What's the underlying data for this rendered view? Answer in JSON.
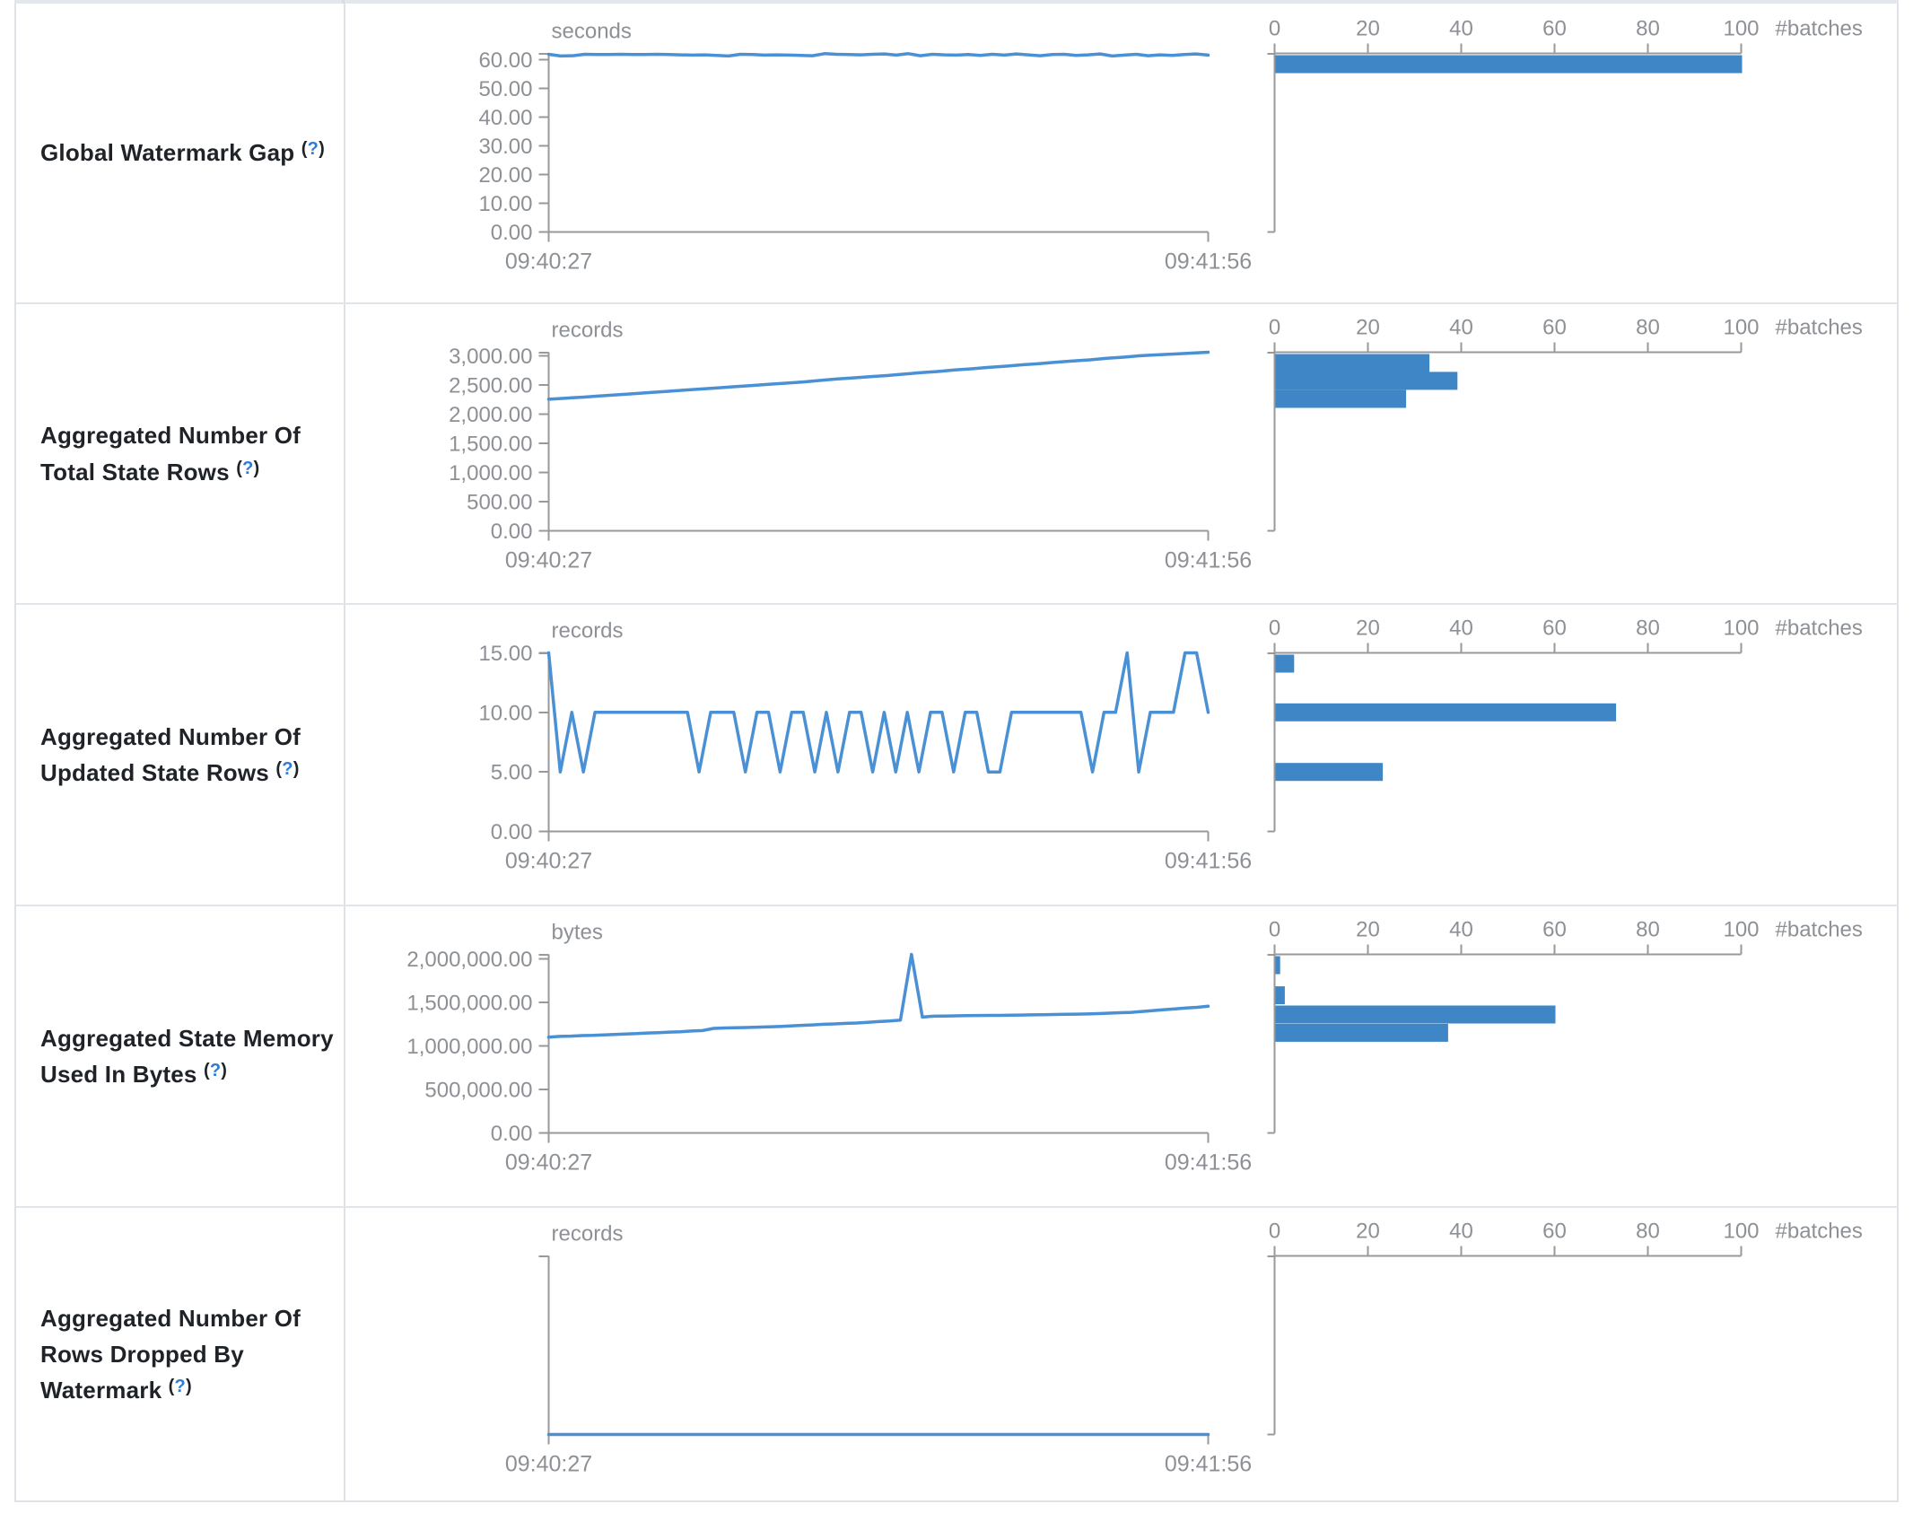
{
  "help": {
    "open": "(",
    "mark": "?",
    "close": ")"
  },
  "time_axis": {
    "start": "09:40:27",
    "end": "09:41:56"
  },
  "histogram_axis": {
    "label": "#batches",
    "max": 100,
    "ticks": [
      {
        "v": 0,
        "label": "0"
      },
      {
        "v": 20,
        "label": "20"
      },
      {
        "v": 40,
        "label": "40"
      },
      {
        "v": 60,
        "label": "60"
      },
      {
        "v": 80,
        "label": "80"
      },
      {
        "v": 100,
        "label": "100"
      }
    ]
  },
  "colors": {
    "line_blue": "#4a90d5",
    "bar_blue": "#3e86c6",
    "axis_gray": "#999999",
    "chart_text_gray": "#8d9095",
    "label_dark": "#1f2328",
    "help_blue": "#2e7bd6",
    "border_gray": "#dee2e6"
  },
  "chart_data": [
    {
      "type": "line+histogram",
      "label": "Global Watermark Gap",
      "unit": "seconds",
      "y_max": 62.2,
      "y_ticks": [
        {
          "v": 0,
          "label": "0.00"
        },
        {
          "v": 10,
          "label": "10.00"
        },
        {
          "v": 20,
          "label": "20.00"
        },
        {
          "v": 30,
          "label": "30.00"
        },
        {
          "v": 40,
          "label": "40.00"
        },
        {
          "v": 50,
          "label": "50.00"
        },
        {
          "v": 60,
          "label": "60.00"
        }
      ],
      "values": [
        61.9,
        61.3,
        61.4,
        61.9,
        61.8,
        61.8,
        61.9,
        61.8,
        61.8,
        61.9,
        61.8,
        61.7,
        61.6,
        61.7,
        61.5,
        61.3,
        61.9,
        61.8,
        61.6,
        61.7,
        61.6,
        61.5,
        61.4,
        62.1,
        61.9,
        61.8,
        61.7,
        61.9,
        62.0,
        61.6,
        62.1,
        61.4,
        61.9,
        61.7,
        61.6,
        61.8,
        61.5,
        61.9,
        61.6,
        62.0,
        61.7,
        61.4,
        61.8,
        61.9,
        61.5,
        61.7,
        62.0,
        61.3,
        61.6,
        61.9,
        61.4,
        61.7,
        61.5,
        61.8,
        62.0,
        61.6
      ],
      "histogram_bins": [
        {
          "value": 60.5,
          "batches": 100
        }
      ]
    },
    {
      "type": "line+histogram",
      "label": "Aggregated Number Of Total State Rows",
      "unit": "records",
      "y_max": 3060,
      "y_ticks": [
        {
          "v": 0,
          "label": "0.00"
        },
        {
          "v": 500,
          "label": "500.00"
        },
        {
          "v": 1000,
          "label": "1,000.00"
        },
        {
          "v": 1500,
          "label": "1,500.00"
        },
        {
          "v": 2000,
          "label": "2,000.00"
        },
        {
          "v": 2500,
          "label": "2,500.00"
        },
        {
          "v": 3000,
          "label": "3,000.00"
        }
      ],
      "values": [
        2255,
        2272,
        2290,
        2310,
        2330,
        2350,
        2370,
        2390,
        2410,
        2430,
        2450,
        2470,
        2490,
        2510,
        2530,
        2550,
        2575,
        2600,
        2620,
        2640,
        2660,
        2685,
        2710,
        2730,
        2755,
        2775,
        2800,
        2820,
        2845,
        2865,
        2890,
        2910,
        2930,
        2955,
        2975,
        3000,
        3015,
        3030,
        3045,
        3060
      ],
      "histogram_bins": [
        {
          "value": 2880,
          "batches": 33
        },
        {
          "value": 2570,
          "batches": 39
        },
        {
          "value": 2260,
          "batches": 28
        }
      ]
    },
    {
      "type": "line+histogram",
      "label": "Aggregated Number Of Updated State Rows",
      "unit": "records",
      "y_max": 15,
      "y_ticks": [
        {
          "v": 0,
          "label": "0.00"
        },
        {
          "v": 5,
          "label": "5.00"
        },
        {
          "v": 10,
          "label": "10.00"
        },
        {
          "v": 15,
          "label": "15.00"
        }
      ],
      "values": [
        15,
        5,
        10,
        5,
        10,
        10,
        10,
        10,
        10,
        10,
        10,
        10,
        10,
        5,
        10,
        10,
        10,
        5,
        10,
        10,
        5,
        10,
        10,
        5,
        10,
        5,
        10,
        10,
        5,
        10,
        5,
        10,
        5,
        10,
        10,
        5,
        10,
        10,
        5,
        5,
        10,
        10,
        10,
        10,
        10,
        10,
        10,
        5,
        10,
        10,
        15,
        5,
        10,
        10,
        10,
        15,
        15,
        10
      ],
      "histogram_bins": [
        {
          "value": 15,
          "batches": 4
        },
        {
          "value": 10,
          "batches": 73
        },
        {
          "value": 5,
          "batches": 23
        }
      ]
    },
    {
      "type": "line+histogram",
      "label": "Aggregated State Memory Used In Bytes",
      "unit": "bytes",
      "y_max": 2050000,
      "y_ticks": [
        {
          "v": 0,
          "label": "0.00"
        },
        {
          "v": 500000,
          "label": "500,000.00"
        },
        {
          "v": 1000000,
          "label": "1,000,000.00"
        },
        {
          "v": 1500000,
          "label": "1,500,000.00"
        },
        {
          "v": 2000000,
          "label": "2,000,000.00"
        }
      ],
      "values": [
        1100000,
        1108000,
        1112000,
        1118000,
        1120000,
        1126000,
        1130000,
        1136000,
        1140000,
        1148000,
        1152000,
        1158000,
        1162000,
        1170000,
        1175000,
        1200000,
        1205000,
        1208000,
        1210000,
        1215000,
        1218000,
        1222000,
        1228000,
        1235000,
        1240000,
        1248000,
        1252000,
        1258000,
        1262000,
        1270000,
        1278000,
        1285000,
        1295000,
        2050000,
        1330000,
        1340000,
        1342000,
        1344000,
        1346000,
        1348000,
        1350000,
        1350000,
        1352000,
        1354000,
        1356000,
        1358000,
        1360000,
        1362000,
        1364000,
        1366000,
        1370000,
        1375000,
        1380000,
        1385000,
        1395000,
        1405000,
        1415000,
        1425000,
        1435000,
        1442000,
        1455000
      ],
      "histogram_bins": [
        {
          "value": 1950000,
          "batches": 1
        },
        {
          "value": 1580000,
          "batches": 2
        },
        {
          "value": 1360000,
          "batches": 60
        },
        {
          "value": 1150000,
          "batches": 37
        }
      ]
    },
    {
      "type": "line+histogram",
      "label": "Aggregated Number Of Rows Dropped By Watermark",
      "unit": "records",
      "y_max": 1,
      "y_ticks": [],
      "values": [
        0,
        0
      ],
      "histogram_bins": []
    }
  ]
}
